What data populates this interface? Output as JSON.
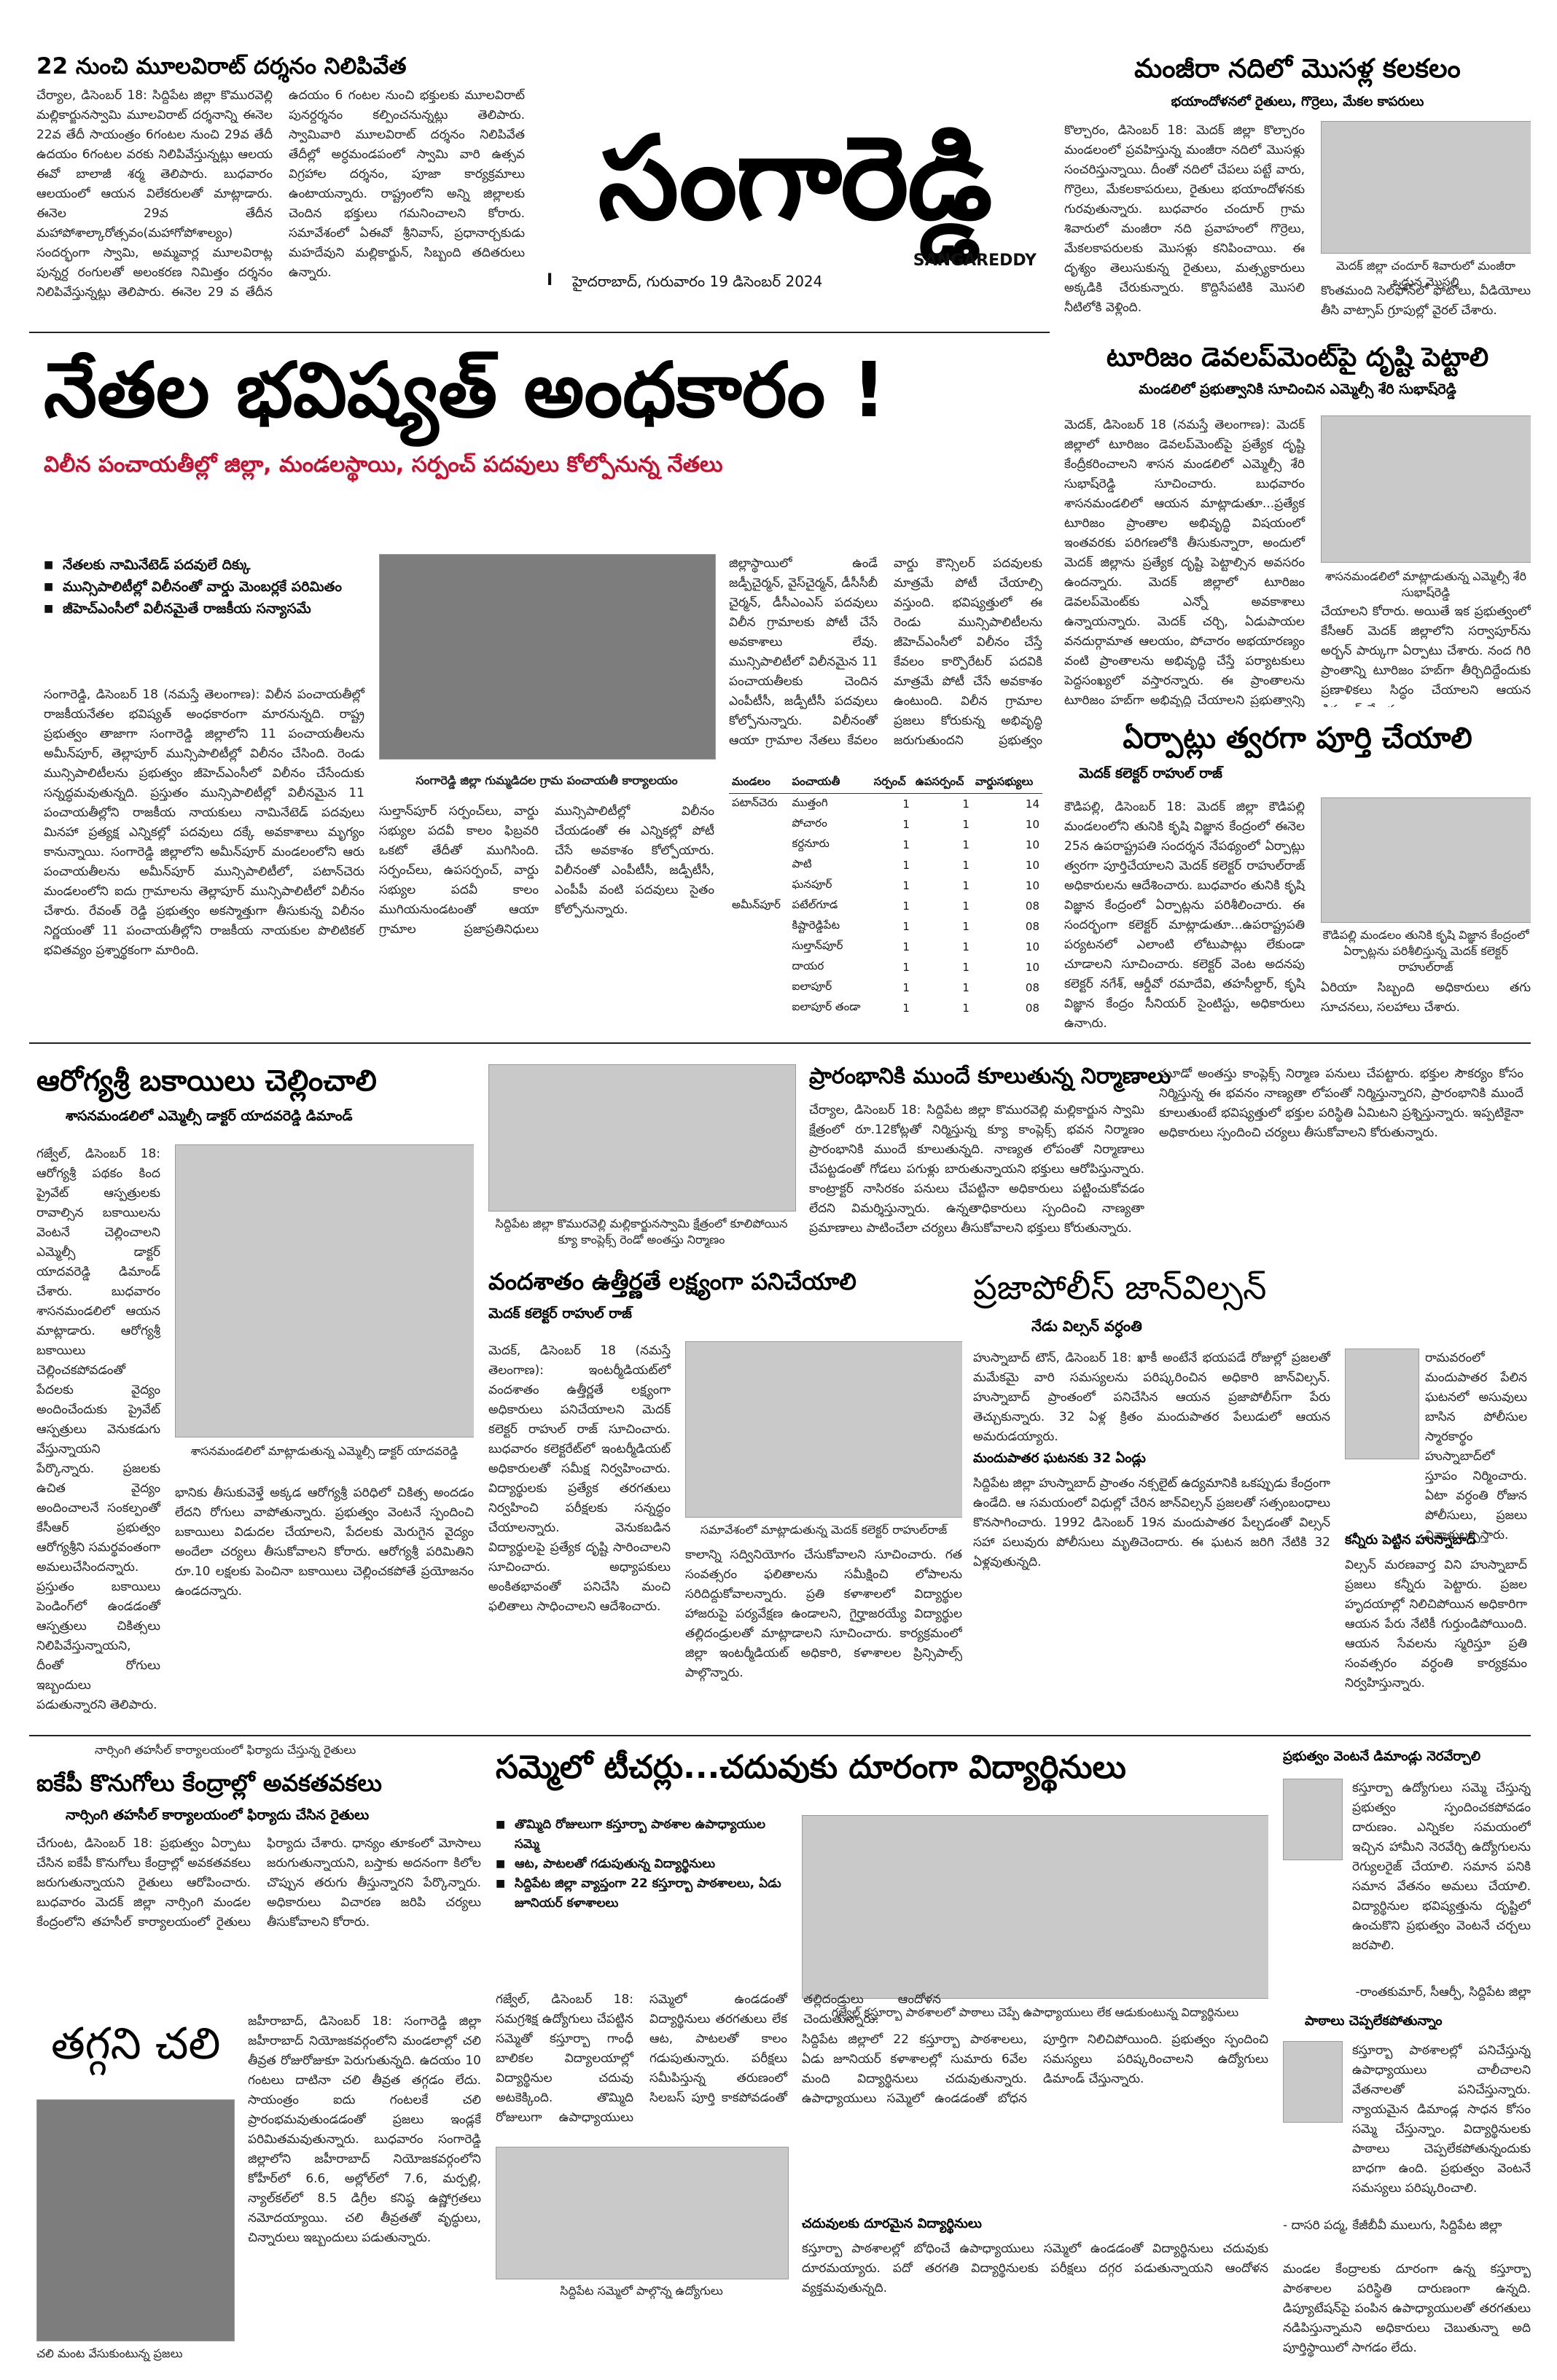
{
  "masthead": {
    "title": "సంగారెడ్డి",
    "subtitle": "SANGAREDDY",
    "edition_mark": "I",
    "dateline": "హైదరాబాద్, గురువారం 19 డిసెంబర్ 2024"
  },
  "a1": {
    "headline": "22 నుంచి మూలవిరాట్ దర్శనం నిలిపివేత",
    "body": "చేర్యాల, డిసెంబర్ 18: సిద్దిపేట జిల్లా కొమురవెల్లి మల్లికార్జునస్వామి మూలవిరాట్ దర్శనాన్ని ఈనెల 22వ తేదీ సాయంత్రం 6గంటల నుంచి 29వ తేదీ ఉదయం 6గంటల వరకు నిలిపివేస్తున్నట్లు ఆలయ ఈవో బాలాజీ శర్మ తెలిపారు. బుధవారం ఆలయంలో ఆయన విలేకరులతో మాట్లాడారు. ఈనెల 29వ తేదీన మహాపోశాల్కారోత్సవం(మహాగోపోశాల్యం) సందర్భంగా స్వామి, అమ్మవార్ల మూలవిరాట్ల పున్నర్ద రంగులతో అలంకరణ నిమిత్తం దర్శనం నిలిపివేస్తున్నట్లు తెలిపారు. ఈనెల 29 వ తేదీన ఉదయం 6 గంటల నుంచి భక్తులకు మూలవిరాట్ పునర్దర్శనం కల్పించనున్నట్లు తెలిపారు. స్వామివారి మూలవిరాట్ దర్శనం నిలిపివేత తేదీల్లో అర్ధమండపంలో స్వామి వారి ఉత్సవ విగ్రహాల దర్శనం, పూజా కార్యక్రమాలు ఉంటాయన్నారు. రాష్ట్రంలోని అన్ని జిల్లాలకు చెందిన భక్తులు గమనించాలని కోరారు. సమావేశంలో ఏఈవో శ్రీనివాస్, ప్రధానార్చకుడు మహదేవుని మల్లికార్జున్, సిబ్బంది తదితరులు ఉన్నారు."
  },
  "a2": {
    "headline": "మంజీరా నదిలో మొసళ్ల కలకలం",
    "subhead": "భయాందోళనలో రైతులు, గొర్రెలు, మేకల కాపరులు",
    "body": "కొల్చారం, డిసెంబర్ 18: మెదక్ జిల్లా కొల్చారం మండలంలో ప్రవహిస్తున్న మంజీరా నదిలో మొసళ్లు సంచరిస్తున్నాయి. దీంతో నదిలో చేపలు పట్టే వారు, గొర్రెలు, మేకలకాపరులు, రైతులు భయాందోళనకు గురవుతున్నారు. బుధవారం చందూర్ గ్రామ శివారులో మంజీరా నది ప్రవాహంలో గొర్రెలు, మేకలకాపరులకు మొసళ్లు కనిపించాయి. ఈ దృశ్యం తెలుసుకున్న రైతులు, మత్స్యకారులు అక్కడికి చేరుకున్నారు. కొద్దిసేపటికి మొసలి నీటిలోకి వెళ్లింది.",
    "caption": "మెదక్ జిల్లా చందూర్ శివారులో మంజీరా ఒడ్డున మొసలి",
    "caption2": "కొంతమంది సెల్‌ఫోన్‌లో ఫోటోలు, వీడియోలు తీసి వాట్సాప్ గ్రూపుల్లో వైరల్ చేశారు."
  },
  "lead": {
    "headline": "నేతల భవిష్యత్ అంధకారం !",
    "subhead": "విలీన పంచాయతీల్లో జిల్లా, మండలస్థాయి, సర్పంచ్ పదవులు కోల్పోనున్న నేతలు",
    "bullets": [
      "నేతలకు నామినేటెడ్ పదవులే దిక్కు",
      "మున్సిపాలిటీల్లో విలీనంతో వార్డు మెంబర్లకే పరిమితం",
      "జీహెచ్ఎంసీలో విలీనమైతే రాజకీయ సన్యాసమే"
    ],
    "body": "సంగారెడ్డి, డిసెంబర్ 18 (నమస్తే తెలంగాణ): విలీన పంచాయతీల్లో రాజకీయనేతల భవిష్యత్ అంధకారంగా మారనున్నది. రాష్ట్ర ప్రభుత్వం తాజాగా సంగారెడ్డి జిల్లాలోని 11 పంచాయతీలను అమీన్‌పూర్, తెల్లాపూర్ మున్సిపాలిటీల్లో విలీనం చేసింది. రెండు మున్సిపాలిటీలను ప్రభుత్వం జీహెచ్ఎంసీలో విలీనం చేసేందుకు సన్నద్ధమవుతున్నది. ప్రస్తుతం మున్సిపాలిటీల్లో విలీనమైన 11 పంచాయతీల్లోని రాజకీయ నాయకులు నామినేటెడ్ పదవులు మినహా ప్రత్యక్ష ఎన్నికల్లో పదవులు దక్కే అవకాశాలు మృగ్యం కానున్నాయి. సంగారెడ్డి జిల్లాలోని అమీన్‌పూర్ మండలంలోని ఆరు పంచాయతీలను అమీన్‌పూర్ మున్సిపాలిటీలో, పటాన్‌చెరు మండలంలోని ఐదు గ్రామాలను తెల్లాపూర్ మున్సిపాలిటీలో విలీనం చేశారు. రేవంత్ రెడ్డి ప్రభుత్వం అకస్మాత్తుగా తీసుకున్న విలీనం నిర్ణయంతో 11 పంచాయతీల్లోని రాజకీయ నాయకుల పొలిటికల్ భవితవ్యం ప్రశ్నార్థకంగా మారింది.",
    "body2": "జిల్లాస్థాయిలో ఉండే జడ్పీచైర్మన్, వైస్‌చైర్మన్, డీసీసీబీ చైర్మన్, డీసీఎంఎస్ పదవులు విలీన గ్రామాలకు పోటీ చేసే అవకాశాలు లేవు. మున్సిపాలిటీలో విలీనమైన 11 పంచాయతీలకు చెందిన ఎంపీటీసీ, జడ్పీటీసీ పదవులు కోల్పోనున్నారు. విలీనంతో ఆయా గ్రామాల నేతలు కేవలం వార్డు కౌన్సిలర్ పదవులకు మాత్రమే పోటీ చేయాల్సి వస్తుంది. భవిష్యత్తులో ఈ రెండు మున్సిపాలిటీలను జీహెచ్ఎంసీలో విలీనం చేస్తే కేవలం కార్పొరేటర్ పదవికి మాత్రమే పోటీ చేసే అవకాశం ఉంటుంది. విలీన గ్రామాల ప్రజలు కోరుకున్న అభివృద్ధి జరుగుతుందని ప్రభుత్వం చెబుతుండగా, రాజకీయ నేతలు మాత్రం తమ భవిష్యత్ అంధకారమయమవుతుందని ఆవేదన వ్యక్తం చేస్తున్నారు.",
    "table_title": "సంగారెడ్డి జిల్లా గుమ్మడిదల గ్రామ పంచాయతీ కార్యాలయం",
    "table_text": "సుల్తాన్‌పూర్ సర్పంచ్‌లు, వార్డు సభ్యుల పదవీ కాలం ఫిబ్రవరి ఒకటో తేదీతో ముగిసింది. సర్పంచ్‌లు, ఉపసర్పంచ్, వార్డు సభ్యుల పదవీ కాలం ముగియనుండటంతో ఆయా గ్రామాల ప్రజాప్రతినిధులు మున్సిపాలిటీల్లో విలీనం చేయడంతో ఈ ఎన్నికల్లో పోటీ చేసే అవకాశం కోల్పోయారు. విలీనంతో ఎంపీటీసీ, జడ్పీటీసీ, ఎంపీపీ వంటి పదవులు సైతం కోల్పోనున్నారు.",
    "table_text2": "విలీనంతో జడ్పీటీసీ, ఎంపీటీసీ, ఎంపీపీ వంటి పదవులు కోల్పోనున్నారు. పటాన్‌చెరు మండలంలోని ఐదు పంచాయతీలు, అమీన్‌పూర్ మండలంలోని ఆరు పంచాయతీలు కలిపి పదకొండు పంచాయతీలు మున్సిపాలిటీలో విలీనమయ్యాయి. ఆయా గ్రామాల నుంచి గెలిచిన నాయకులు ఇప్పుడు ఏ పదవికి పోటీ చేయాలో తెలియక అయోమయంలో ఉన్నారు. మున్సిపాలిటీలో విలీనమైన పంచాయతీల నేతలకు కౌన్సిలర్ పదవులకు పోటీ చేసే అవకాశం మాత్రమే మిగిలింది.",
    "table": {
      "headers": [
        "మండలం",
        "పంచాయతీ",
        "సర్పంచ్",
        "ఉపసర్పంచ్",
        "వార్డుసభ్యులు"
      ],
      "rows": [
        [
          "పటాన్‌చెరు",
          "ముత్తంగి",
          "1",
          "1",
          "14"
        ],
        [
          "",
          "పోచారం",
          "1",
          "1",
          "10"
        ],
        [
          "",
          "కర్దనూరు",
          "1",
          "1",
          "10"
        ],
        [
          "",
          "పాటి",
          "1",
          "1",
          "10"
        ],
        [
          "",
          "ఘనపూర్",
          "1",
          "1",
          "10"
        ],
        [
          "అమీన్‌పూర్",
          "పటేల్‌గూడ",
          "1",
          "1",
          "08"
        ],
        [
          "",
          "కిష్టారెడ్డిపేట",
          "1",
          "1",
          "08"
        ],
        [
          "",
          "సుల్తాన్‌పూర్",
          "1",
          "1",
          "10"
        ],
        [
          "",
          "దాయర",
          "1",
          "1",
          "10"
        ],
        [
          "",
          "ఐలాపూర్",
          "1",
          "1",
          "08"
        ],
        [
          "",
          "ఐలాపూర్ తండా",
          "1",
          "1",
          "08"
        ]
      ]
    }
  },
  "a3": {
    "headline": "టూరిజం డెవలప్‌మెంట్‌పై దృష్టి పెట్టాలి",
    "subhead": "మండలిలో ప్రభుత్వానికి సూచించిన ఎమ్మెల్సీ శేరి సుభాష్‌రెడ్డి",
    "body": "మెదక్, డిసెంబర్ 18 (నమస్తే తెలంగాణ): మెదక్ జిల్లాలో టూరిజం డెవలప్‌మెంట్‌పై ప్రత్యేక దృష్టి కేంద్రీకరించాలని శాసన మండలిలో ఎమ్మెల్సీ శేరి సుభాష్‌రెడ్డి సూచించారు. బుధవారం శాసనమండలిలో ఆయన మాట్లాడుతూ...ప్రత్యేక టూరిజం ప్రాంతాల అభివృద్ధి విషయంలో ఇంతవరకు పరిగణలోకి తీసుకున్నారా, అందులో మెదక్ జిల్లాను ప్రత్యేక దృష్టి పెట్టాల్సిన అవసరం ఉందన్నారు. మెదక్ జిల్లాలో టూరిజం డెవలప్‌మెంట్‌కు ఎన్నో అవకాశాలు ఉన్నాయన్నారు. మెదక్ చర్చి, ఏడుపాయల వనదుర్గామాత ఆలయం, పోచారం అభయారణ్యం వంటి ప్రాంతాలను అభివృద్ధి చేస్తే పర్యాటకులు పెద్దసంఖ్యలో వస్తారన్నారు. ఈ ప్రాంతాలను టూరిజం హబ్‌గా అభివృద్ధి చేయాలని ప్రభుత్వాన్ని కోరారు.",
    "caption": "శాసనమండలిలో మాట్లాడుతున్న ఎమ్మెల్సీ శేరి సుభాష్‌రెడ్డి",
    "body2": "చేయాలని కోరారు. అయితే ఇక ప్రభుత్వంలో కేసీఆర్ మెదక్ జిల్లాలోని సర్వాపూర్‌ను అర్బన్ పార్కుగా ఏర్పాటు చేశారు. నంద గిరి ప్రాంతాన్ని టూరిజం హబ్‌గా తీర్చిదిద్దేందుకు ప్రణాళికలు సిద్ధం చేయాలని ఆయన డిమాండ్ చేశారు."
  },
  "a4": {
    "headline": "ఏర్పాట్లు త్వరగా పూర్తి చేయాలి",
    "subhead": "మెదక్ కలెక్టర్ రాహుల్ రాజ్",
    "body": "కౌడిపల్లి, డిసెంబర్ 18: మెదక్ జిల్లా కౌడిపల్లి మండలంలోని తునికి కృషి విజ్ఞాన కేంద్రంలో ఈనెల 25న ఉపరాష్ట్రపతి సందర్శన నేపథ్యంలో ఏర్పాట్లు త్వరగా పూర్తిచేయాలని మెదక్ కలెక్టర్ రాహుల్‌రాజ్ అధికారులను ఆదేశించారు. బుధవారం తునికి కృషి విజ్ఞాన కేంద్రంలో ఏర్పాట్లను పరిశీలించారు. ఈ సందర్భంగా కలెక్టర్ మాట్లాడుతూ...ఉపరాష్ట్రపతి పర్యటనలో ఎలాంటి లోటుపాట్లు లేకుండా చూడాలని సూచించారు. కలెక్టర్ వెంట అదనపు కలెక్టర్ నగేశ్, ఆర్డీవో రమాదేవి, తహసీల్దార్, కృషి విజ్ఞాన కేంద్రం సీనియర్ సైంటిస్టు, అధికారులు ఉన్నారు.",
    "caption": "కౌడిపల్లి మండలం తునికి కృషి విజ్ఞాన కేంద్రంలో ఏర్పాట్లను పరిశీలిస్తున్న మెదక్ కలెక్టర్ రాహుల్‌రాజ్",
    "body2": "ఏరియా సిబ్బంది అధికారులు తగు సూచనలు, సలహాలు చేశారు."
  },
  "a5": {
    "headline": "ఆరోగ్యశ్రీ బకాయిలు చెల్లించాలి",
    "subhead": "శాసనమండలిలో ఎమ్మెల్సీ డాక్టర్ యాదవరెడ్డి డిమాండ్",
    "body": "గజ్వేల్, డిసెంబర్ 18: ఆరోగ్యశ్రీ పథకం కింద ప్రైవేట్ ఆస్పత్రులకు రావాల్సిన బకాయిలను వెంటనే చెల్లించాలని ఎమ్మెల్సీ డాక్టర్ యాదవరెడ్డి డిమాండ్ చేశారు. బుధవారం శాసనమండలిలో ఆయన మాట్లాడారు. ఆరోగ్యశ్రీ బకాయిలు చెల్లించకపోవడంతో పేదలకు వైద్యం అందించేందుకు ప్రైవేట్ ఆస్పత్రులు వెనుకడుగు వేస్తున్నాయని పేర్కొన్నారు. ప్రజలకు ఉచిత వైద్యం అందించాలనే సంకల్పంతో కేసీఆర్ ప్రభుత్వం ఆరోగ్యశ్రీని సమర్థవంతంగా అమలుచేసిందన్నారు. ప్రస్తుతం బకాయిలు పెండింగ్‌లో ఉండడంతో ఆస్పత్రులు చికిత్సలు నిలిపివేస్తున్నాయని, దీంతో రోగులు ఇబ్బందులు పడుతున్నారని తెలిపారు.",
    "caption": "శాసనమండలిలో మాట్లాడుతున్న ఎమ్మెల్సీ డాక్టర్ యాదవరెడ్డి",
    "body2": "భానికు తీసుకువెళ్తే అక్కడ ఆరోగ్యశ్రీ పరిధిలో చికిత్స అందడం లేదని రోగులు వాపోతున్నారు. ప్రభుత్వం వెంటనే స్పందించి బకాయిలు విడుదల చేయాలని, పేదలకు మెరుగైన వైద్యం అందేలా చర్యలు తీసుకోవాలని కోరారు. ఆరోగ్యశ్రీ పరిమితిని రూ.10 లక్షలకు పెంచినా బకాయిలు చెల్లించకపోతే ప్రయోజనం ఉండదన్నారు."
  },
  "a6": {
    "headline": "ప్రారంభానికి ముందే కూలుతున్న నిర్మాణాలు",
    "body": "చేర్యాల, డిసెంబర్ 18: సిద్దిపేట జిల్లా కొమురవెల్లి మల్లికార్జున స్వామి క్షేత్రంలో రూ.12కోట్లతో నిర్మిస్తున్న క్యూ కాంప్లెక్స్ భవన నిర్మాణం ప్రారంభానికి ముందే కూలుతున్నది. నాణ్యత లోపంతో నిర్మాణాలు చేపట్టడంతో గోడలు పగుళ్లు బారుతున్నాయని భక్తులు ఆరోపిస్తున్నారు. కాంట్రాక్టర్ నాసిరకం పనులు చేపట్టినా అధికారులు పట్టించుకోవడం లేదని విమర్శిస్తున్నారు. ఉన్నతాధికారులు స్పందించి నాణ్యతా ప్రమాణాలు పాటించేలా చర్యలు తీసుకోవాలని భక్తులు కోరుతున్నారు.",
    "caption": "సిద్దిపేట జిల్లా కొమురవెల్లి మల్లికార్జునస్వామి క్షేత్రంలో కూలిపోయిన క్యూ కాంప్లెక్స్ రెండో అంతస్తు నిర్మాణం",
    "body2": "మూడో అంతస్తు కాంప్లెక్స్ నిర్మాణ పనులు చేపట్టారు. భక్తుల సౌకర్యం కోసం నిర్మిస్తున్న ఈ భవనం నాణ్యతా లోపంతో నిర్మిస్తున్నారని, ప్రారంభానికి ముందే కూలుతుంటే భవిష్యత్తులో భక్తుల పరిస్థితి ఏమిటని ప్రశ్నిస్తున్నారు. ఇప్పటికైనా అధికారులు స్పందించి చర్యలు తీసుకోవాలని కోరుతున్నారు."
  },
  "a7": {
    "headline": "వందశాతం ఉత్తీర్ణతే లక్ష్యంగా పనిచేయాలి",
    "subhead": "మెదక్ కలెక్టర్ రాహుల్ రాజ్",
    "body": "మెదక్, డిసెంబర్ 18 (నమస్తే తెలంగాణ): ఇంటర్మీడియట్‌లో వందశాతం ఉత్తీర్ణతే లక్ష్యంగా అధికారులు పనిచేయాలని మెదక్ కలెక్టర్ రాహుల్ రాజ్ సూచించారు. బుధవారం కలెక్టరేట్‌లో ఇంటర్మీడియట్ అధికారులతో సమీక్ష నిర్వహించారు. విద్యార్థులకు ప్రత్యేక తరగతులు నిర్వహించి పరీక్షలకు సన్నద్ధం చేయాలన్నారు. వెనుకబడిన విద్యార్థులపై ప్రత్యేక దృష్టి సారించాలని సూచించారు. అధ్యాపకులు అంకితభావంతో పనిచేసి మంచి ఫలితాలు సాధించాలని ఆదేశించారు.",
    "caption": "సమావేశంలో మాట్లాడుతున్న మెదక్ కలెక్టర్ రాహుల్‌రాజ్",
    "body2": "కాలాన్ని సద్వినియోగం చేసుకోవాలని సూచించారు. గత సంవత్సరం ఫలితాలను సమీక్షించి లోపాలను సరిదిద్దుకోవాలన్నారు. ప్రతి కళాశాలలో విద్యార్థుల హాజరుపై పర్యవేక్షణ ఉండాలని, గైర్హాజరయ్యే విద్యార్థుల తల్లిదండ్రులతో మాట్లాడాలని సూచించారు. కార్యక్రమంలో జిల్లా ఇంటర్మీడియట్ అధికారి, కళాశాలల ప్రిన్సిపాల్స్ పాల్గొన్నారు."
  },
  "a8": {
    "headline": "ప్రజాపోలీస్ జాన్‌విల్సన్",
    "subhead": "నేడు విల్సన్ వర్ధంతి",
    "body": "హుస్నాబాద్ టౌన్, డిసెంబర్ 18: ఖాకీ అంటేనే భయపడే రోజుల్లో ప్రజలతో మమేకమై వారి సమస్యలను పరిష్కరించిన అధికారి జాన్‌విల్సన్. హుస్నాబాద్ ప్రాంతంలో పనిచేసిన ఆయన ప్రజాపోలీస్‌గా పేరు తెచ్చుకున్నారు. 32 ఏళ్ల క్రితం మందుపాతర పేలుడులో ఆయన అమరుడయ్యారు.",
    "subhead2": "మందుపాతర ఘటనకు 32 ఏండ్లు",
    "body2": "సిద్దిపేట జిల్లా హుస్నాబాద్ ప్రాంతం నక్సలైట్ ఉద్యమానికి ఒకప్పుడు కేంద్రంగా ఉండేది. ఆ సమయంలో విధుల్లో చేరిన జాన్‌విల్సన్ ప్రజలతో సత్సంబంధాలు కొనసాగించారు. 1992 డిసెంబర్ 19న మందుపాతర పేల్చడంతో విల్సన్ సహా పలువురు పోలీసులు మృతిచెందారు. ఈ ఘటన జరిగి నేటికి 32 ఏళ్లవుతున్నది.",
    "body3": "రామవరంలో మందుపాతర పేలిన ఘటనలో అసువులు బాసిన పోలీసుల స్మారకార్థం హుస్నాబాద్‌లో స్తూపం నిర్మించారు. ఏటా వర్ధంతి రోజున పోలీసులు, ప్రజలు నివాళులర్పిస్తారు.",
    "subhead3": "కన్నీరు పెట్టిన హుస్నాబాద్",
    "body4": "విల్సన్ మరణవార్త విని హుస్నాబాద్ ప్రజలు కన్నీరు పెట్టారు. ప్రజల హృదయాల్లో నిలిచిపోయిన అధికారిగా ఆయన పేరు నేటికీ గుర్తుండిపోయింది. ఆయన సేవలను స్మరిస్తూ ప్రతి సంవత్సరం వర్ధంతి కార్యక్రమం నిర్వహిస్తున్నారు."
  },
  "a9": {
    "caption": "నార్సింగి తహసీల్ కార్యాలయంలో ఫిర్యాదు చేస్తున్న రైతులు",
    "headline": "ఐకేపీ కొనుగోలు కేంద్రాల్లో అవకతవకలు",
    "subhead": "నార్సింగి తహసీల్ కార్యాలయంలో ఫిర్యాదు చేసిన రైతులు",
    "body": "చేగుంట, డిసెంబర్ 18: ప్రభుత్వం ఏర్పాటు చేసిన ఐకేపీ కొనుగోలు కేంద్రాల్లో అవకతవకలు జరుగుతున్నాయని రైతులు ఆరోపించారు. బుధవారం మెదక్ జిల్లా నార్సింగి మండల కేంద్రంలోని తహసీల్ కార్యాలయంలో రైతులు ఫిర్యాదు చేశారు. ధాన్యం తూకంలో మోసాలు జరుగుతున్నాయని, బస్తాకు అదనంగా కిలోల చొప్పున తరుగు తీస్తున్నారని పేర్కొన్నారు. అధికారులు విచారణ జరిపి చర్యలు తీసుకోవాలని కోరారు."
  },
  "a10": {
    "headline": "సమ్మెలో టీచర్లు...చదువుకు దూరంగా విద్యార్థినులు",
    "bullets": [
      "తొమ్మిది రోజులుగా కస్తూర్బా పాఠశాల ఉపాధ్యాయుల సమ్మె",
      "ఆట, పాటలతో గడుపుతున్న విద్యార్థినులు",
      "సిద్దిపేట జిల్లా వ్యాప్తంగా 22 కస్తూర్బా పాఠశాలలు, ఏడు జూనియర్ కళాశాలలు"
    ],
    "body": "గజ్వేల్, డిసెంబర్ 18: సమగ్రశిక్ష ఉద్యోగులు చేపట్టిన సమ్మెతో కస్తూర్బా గాంధీ బాలికల విద్యాలయాల్లో విద్యార్థినుల చదువు అటకెక్కింది. తొమ్మిది రోజులుగా ఉపాధ్యాయులు సమ్మెలో ఉండడంతో విద్యార్థినులు తరగతులు లేక ఆట, పాటలతో కాలం గడుపుతున్నారు. పరీక్షలు సమీపిస్తున్న తరుణంలో సిలబస్ పూర్తి కాకపోవడంతో తల్లిదండ్రులు ఆందోళన చెందుతున్నారు.",
    "caption": "సిద్దిపేట సమ్మెలో పాల్గొన్న ఉద్యోగులు",
    "caption2": "గజ్వేల్ కస్తూర్బా పాఠశాలలో పాఠాలు చెప్పే ఉపాధ్యాయులు లేక ఆడుకుంటున్న విద్యార్థినులు",
    "body2": "సిద్దిపేట జిల్లాలో 22 కస్తూర్బా పాఠశాలలు, ఏడు జూనియర్ కళాశాలల్లో సుమారు 6వేల మంది విద్యార్థినులు చదువుతున్నారు. ఉపాధ్యాయులు సమ్మెలో ఉండడంతో బోధన పూర్తిగా నిలిచిపోయింది. ప్రభుత్వం స్పందించి సమస్యలు పరిష్కరించాలని ఉద్యోగులు డిమాండ్ చేస్తున్నారు.",
    "subhead2": "చదువులకు దూరమైన విద్యార్థినులు",
    "body3": "కస్తూర్బా పాఠశాలల్లో బోధించే ఉపాధ్యాయులు సమ్మెలో ఉండడంతో విద్యార్థినులు చదువుకు దూరమయ్యారు. పదో తరగతి విద్యార్థినులకు పరీక్షలు దగ్గర పడుతున్నాయని ఆందోళన వ్యక్తమవుతున్నది."
  },
  "a11": {
    "headline": "ప్రభుత్వం వెంటనే డిమాండ్లు నెరవేర్చాలి",
    "body": "కస్తూర్బా ఉద్యోగులు సమ్మె చేస్తున్న ప్రభుత్వం స్పందించకపోవడం దారుణం. ఎన్నికల సమయంలో ఇచ్చిన హామీని నెరవేర్చి ఉద్యోగులను రెగ్యులరైజ్ చేయాలి. సమాన పనికి సమాన వేతనం అమలు చేయాలి. విద్యార్థినుల భవిష్యత్తును దృష్టిలో ఉంచుకొని ప్రభుత్వం వెంటనే చర్చలు జరపాలి.",
    "byline": "-రాంతకుమార్, సీఆర్పీ, సిద్దిపేట జిల్లా",
    "subhead": "పాఠాలు చెప్పలేకపోతున్నాం",
    "body2": "కస్తూర్బా పాఠశాలల్లో పనిచేస్తున్న ఉపాధ్యాయులు చాలీచాలని వేతనాలతో పనిచేస్తున్నారు. న్యాయమైన డిమాండ్ల సాధన కోసం సమ్మె చేస్తున్నాం. విద్యార్థినులకు పాఠాలు చెప్పలేకపోతున్నందుకు బాధగా ఉంది. ప్రభుత్వం వెంటనే సమస్యలు పరిష్కరించాలి.",
    "byline2": "- దాసరి పద్మ, కేజీబీవీ ములుగు, సిద్దిపేట జిల్లా",
    "body3": "మండల కేంద్రాలకు దూరంగా ఉన్న కస్తూర్బా పాఠశాలల పరిస్థితి దారుణంగా ఉన్నది. డిప్యూటేషన్‌పై పంపిన ఉపాధ్యాయులతో తరగతులు నడిపిస్తున్నామని అధికారులు చెబుతున్నా అది పూర్తిస్థాయిలో సాగడం లేదు."
  },
  "a12": {
    "headline": "తగ్గని చలి",
    "caption": "చలి మంట వేసుకుంటున్న ప్రజలు",
    "body": "జహీరాబాద్, డిసెంబర్ 18: సంగారెడ్డి జిల్లా జహీరాబాద్ నియోజకవర్గంలోని మండలాల్లో చలి తీవ్రత రోజురోజుకూ పెరుగుతున్నది. ఉదయం 10 గంటలు దాటినా చలి తీవ్రత తగ్గడం లేదు. సాయంత్రం ఐదు గంటలకే చలి ప్రారంభమవుతుండడంతో ప్రజలు ఇండ్లకే పరిమితమవుతున్నారు. బుధవారం సంగారెడ్డి జిల్లాలోని జహీరాబాద్ నియోజకవర్గంలోని కోహీర్‌లో 6.6, అల్లోల్‌లో 7.6, మర్పల్లి, న్యాల్‌కల్‌లో 8.5 డిగ్రీల కనిష్ఠ ఉష్ణోగ్రతలు నమోదయ్యాయి. చలి తీవ్రతతో వృద్ధులు, చిన్నారులు ఇబ్బందులు పడుతున్నారు."
  }
}
